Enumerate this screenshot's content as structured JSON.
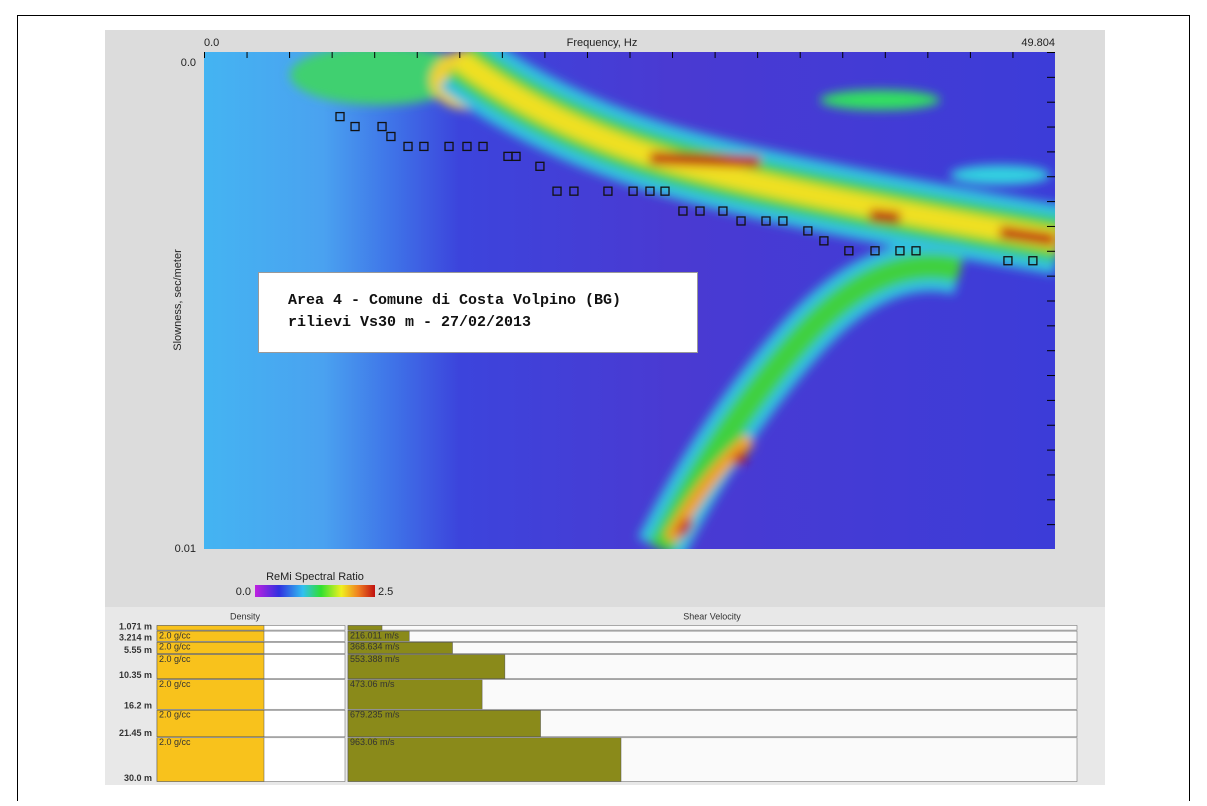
{
  "plot": {
    "x_label": "Frequency, Hz",
    "y_label": "Slowness, sec/meter",
    "xlim": [
      0,
      49.804
    ],
    "ylim": [
      0,
      0.01
    ],
    "xticks": [
      {
        "value": 0,
        "label": "0.0"
      },
      49.804
    ],
    "yticks": [
      {
        "value": 0,
        "label": "0.0"
      },
      0.01
    ],
    "picks": {
      "x": [
        7.96,
        8.84,
        10.42,
        10.94,
        11.94,
        12.87,
        14.34,
        15.39,
        16.33,
        17.79,
        18.26,
        19.66,
        20.66,
        21.65,
        23.64,
        25.11,
        26.1,
        26.98,
        28.03,
        29.03,
        30.37,
        31.43,
        32.89,
        33.88,
        35.34,
        36.28,
        37.74,
        39.27,
        40.73,
        41.67,
        47.05,
        48.51
      ],
      "y": [
        0.0013,
        0.0015,
        0.0015,
        0.0017,
        0.0019,
        0.0019,
        0.0019,
        0.0019,
        0.0019,
        0.0021,
        0.0021,
        0.0023,
        0.0028,
        0.0028,
        0.0028,
        0.0028,
        0.0028,
        0.0028,
        0.0032,
        0.0032,
        0.0032,
        0.0034,
        0.0034,
        0.0034,
        0.0036,
        0.0038,
        0.004,
        0.004,
        0.004,
        0.004,
        0.0042,
        0.0042
      ]
    },
    "annotation": [
      "Area 4 - Comune di Costa Volpino (BG)",
      "rilievi Vs30 m - 27/02/2013"
    ],
    "colorbar": {
      "title": "ReMi Spectral Ratio",
      "ticks": [
        {
          "value": 0,
          "label": "0.0"
        },
        2.5
      ]
    }
  },
  "model": {
    "density_title": "Density",
    "velocity_title": "Shear Velocity",
    "layers": [
      {
        "depth": {
          "value": 1.071,
          "label": "1.071 m"
        },
        "density": {
          "value": 2
        },
        "velocity": {
          "value": 120
        }
      },
      {
        "depth": {
          "value": 3.214,
          "label": "3.214 m"
        },
        "density": {
          "value": 2,
          "label": "2.0 g/cc"
        },
        "velocity": {
          "value": 216.011,
          "label": "216.011 m/s"
        }
      },
      {
        "depth": {
          "value": 5.55,
          "label": "5.55 m"
        },
        "density": {
          "value": 2,
          "label": "2.0 g/cc"
        },
        "velocity": {
          "value": 368.634,
          "label": "368.634 m/s"
        }
      },
      {
        "depth": {
          "value": 10.35,
          "label": "10.35 m"
        },
        "density": {
          "value": 2,
          "label": "2.0 g/cc"
        },
        "velocity": {
          "value": 553.388,
          "label": "553.388 m/s"
        }
      },
      {
        "depth": {
          "value": 16.2,
          "label": "16.2 m"
        },
        "density": {
          "value": 2,
          "label": "2.0 g/cc"
        },
        "velocity": {
          "value": 473.06,
          "label": "473.06 m/s"
        }
      },
      {
        "depth": {
          "value": 21.45,
          "label": "21.45 m"
        },
        "density": {
          "value": 2,
          "label": "2.0 g/cc"
        },
        "velocity": {
          "value": 679.235,
          "label": "679.235 m/s"
        }
      },
      {
        "depth": {
          "value": 30,
          "label": "30.0 m"
        },
        "density": {
          "value": 2,
          "label": "2.0 g/cc"
        },
        "velocity": {
          "value": 963.06,
          "label": "963.06 m/s"
        }
      }
    ]
  }
}
